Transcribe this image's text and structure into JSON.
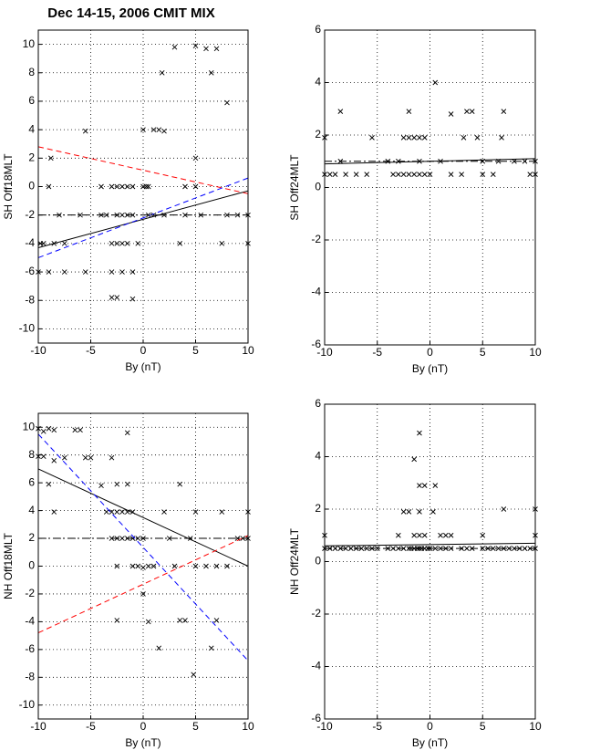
{
  "chart_data": [
    {
      "type": "scatter",
      "title": "Dec 14-15, 2006 CMIT MIX",
      "xlabel": "By (nT)",
      "ylabel": "SH Off18MLT",
      "xlim": [
        -10,
        10
      ],
      "ylim": [
        -11,
        11
      ],
      "xticks": [
        -10,
        -5,
        0,
        5,
        10
      ],
      "yticks": [
        -10,
        -8,
        -6,
        -4,
        -2,
        0,
        2,
        4,
        6,
        8,
        10
      ],
      "grid": true,
      "series": [
        {
          "color": "#000000",
          "x": [
            -10,
            -9.8,
            -9.5,
            -9,
            -9,
            -8.8,
            -8.5,
            -7.5,
            -7.5,
            -5.5,
            -5.5,
            -3.5,
            -3,
            -3,
            -3,
            -2.5,
            -2.5,
            -2,
            -2,
            -1.5,
            -1.5,
            -1,
            -1,
            -1,
            0,
            0,
            0.5,
            0.5,
            1,
            1.5,
            1.8,
            2,
            1,
            2,
            3,
            3.5,
            4,
            5,
            5,
            5,
            6,
            6.5,
            7,
            7.5,
            8,
            9,
            10,
            10,
            -8,
            -6,
            -4,
            -2.5,
            -2,
            -1,
            -4,
            -3,
            -2.5,
            -1.5,
            0.3,
            -0.5,
            -2,
            4,
            5.5,
            8
          ],
          "values": [
            -6,
            -4,
            -4,
            -6,
            0,
            2,
            -4,
            -4,
            -6,
            3.9,
            -6,
            -2,
            -4,
            -6,
            -7.8,
            -7.8,
            -4,
            -6,
            0,
            -2,
            -4,
            -6,
            -7.9,
            0,
            0,
            4,
            -2,
            0,
            4,
            4,
            8,
            3.9,
            -2,
            -2,
            9.8,
            -4,
            -2,
            9.9,
            2,
            0,
            9.7,
            8,
            9.7,
            -4,
            5.9,
            -2,
            -2,
            -4,
            -2,
            -2,
            -2,
            -2,
            -2,
            -2,
            0,
            0,
            0,
            0,
            0,
            -4,
            -4,
            0,
            -2,
            -2
          ]
        }
      ],
      "lines": [
        {
          "color": "#000000",
          "dash": "solid",
          "x": [
            -10,
            10
          ],
          "values": [
            -4.3,
            -0.3
          ]
        },
        {
          "color": "#ff0000",
          "dash": "dashed",
          "x": [
            -10,
            10
          ],
          "values": [
            2.8,
            -0.5
          ]
        },
        {
          "color": "#0000ff",
          "dash": "dashed",
          "x": [
            -10,
            10
          ],
          "values": [
            -5,
            0.6
          ]
        },
        {
          "color": "#000000",
          "dash": "dashdot",
          "x": [
            -10,
            10
          ],
          "values": [
            -2,
            -2
          ]
        }
      ]
    },
    {
      "type": "scatter",
      "xlabel": "By (nT)",
      "ylabel": "SH Off24MLT",
      "xlim": [
        -10,
        10
      ],
      "ylim": [
        -6,
        6
      ],
      "xticks": [
        -10,
        -5,
        0,
        5,
        10
      ],
      "yticks": [
        -6,
        -4,
        -2,
        0,
        2,
        4,
        6
      ],
      "grid": true,
      "series": [
        {
          "color": "#000000",
          "x": [
            -10,
            -10,
            -9.5,
            -9,
            -8.5,
            -8.5,
            -8,
            -7,
            -6,
            -5.5,
            -4,
            -3.5,
            -3,
            -2.5,
            -2,
            -1.5,
            -1,
            -0.5,
            0,
            -2,
            -2.5,
            -2,
            -1.5,
            -1,
            -0.5,
            0.5,
            -3,
            -1,
            1,
            2,
            2,
            3,
            3.2,
            3.5,
            4,
            4.5,
            5,
            5,
            6,
            6.5,
            7,
            6.8,
            8,
            9,
            10,
            9.5,
            10
          ],
          "values": [
            1.9,
            0.5,
            0.5,
            0.5,
            2.9,
            1,
            0.5,
            0.5,
            0.5,
            1.9,
            1,
            0.5,
            0.5,
            0.5,
            0.5,
            0.5,
            0.5,
            0.5,
            0.5,
            2.9,
            1.9,
            1.9,
            1.9,
            1.9,
            1.9,
            4,
            1,
            1,
            1,
            2.8,
            0.5,
            0.5,
            1.9,
            2.9,
            2.9,
            1.9,
            0.5,
            1,
            0.5,
            1,
            2.9,
            1.9,
            1,
            1,
            0.5,
            0.5,
            1
          ]
        }
      ],
      "lines": [
        {
          "color": "#000000",
          "dash": "solid",
          "x": [
            -10,
            10
          ],
          "values": [
            0.9,
            1.1
          ]
        },
        {
          "color": "#000000",
          "dash": "dashdot",
          "x": [
            -10,
            10
          ],
          "values": [
            1,
            1
          ]
        }
      ]
    },
    {
      "type": "scatter",
      "xlabel": "By (nT)",
      "ylabel": "NH Off18MLT",
      "xlim": [
        -10,
        10
      ],
      "ylim": [
        -11,
        11
      ],
      "xticks": [
        -10,
        -5,
        0,
        5,
        10
      ],
      "yticks": [
        -10,
        -8,
        -6,
        -4,
        -2,
        0,
        2,
        4,
        6,
        8,
        10
      ],
      "grid": true,
      "series": [
        {
          "color": "#000000",
          "x": [
            -10,
            -9.5,
            -9,
            -8.5,
            -10,
            -9.5,
            -9,
            -8.5,
            -8.5,
            -7.5,
            -6.5,
            -6,
            -5.5,
            -5,
            -4,
            -3.5,
            -3,
            -2.5,
            -2,
            -1.5,
            -1,
            -3,
            -3,
            -2.5,
            -2,
            -1.5,
            -1,
            -0.5,
            -2.5,
            -1.5,
            -1.5,
            -2.5,
            -2.5,
            -0.5,
            0,
            0.5,
            1,
            0,
            0.5,
            1.5,
            2,
            2.5,
            3,
            3.5,
            3.5,
            4,
            4.5,
            4.8,
            5,
            5,
            6,
            6.5,
            7,
            7,
            7.5,
            8,
            9,
            10,
            10,
            9.5,
            -1,
            0
          ],
          "values": [
            9.9,
            9.7,
            9.9,
            9.8,
            7.9,
            7.9,
            5.9,
            3.9,
            7.6,
            7.8,
            9.8,
            9.8,
            7.8,
            7.8,
            5.8,
            3.9,
            3.9,
            3.9,
            3.9,
            3.9,
            3.9,
            7.8,
            2,
            2,
            2,
            2,
            2,
            2,
            5.9,
            5.9,
            9.6,
            -3.9,
            0,
            0,
            -0.1,
            0,
            0,
            -2,
            -4,
            -5.9,
            3.9,
            2,
            0,
            -3.9,
            5.9,
            -3.9,
            2,
            -7.8,
            0,
            3.9,
            0,
            -5.9,
            -3.9,
            0,
            3.9,
            0,
            2,
            3.9,
            2,
            2,
            0,
            2
          ]
        }
      ],
      "lines": [
        {
          "color": "#000000",
          "dash": "solid",
          "x": [
            -10,
            10
          ],
          "values": [
            7,
            0
          ]
        },
        {
          "color": "#0000ff",
          "dash": "dashed",
          "x": [
            -10,
            10
          ],
          "values": [
            9.5,
            -6.8
          ]
        },
        {
          "color": "#ff0000",
          "dash": "dashed",
          "x": [
            -10,
            10
          ],
          "values": [
            -4.8,
            2.2
          ]
        },
        {
          "color": "#000000",
          "dash": "dashdot",
          "x": [
            -10,
            10
          ],
          "values": [
            2,
            2
          ]
        }
      ]
    },
    {
      "type": "scatter",
      "xlabel": "By (nT)",
      "ylabel": "NH Off24MLT",
      "xlim": [
        -10,
        10
      ],
      "ylim": [
        -6,
        6
      ],
      "xticks": [
        -10,
        -5,
        0,
        5,
        10
      ],
      "yticks": [
        -6,
        -4,
        -2,
        0,
        2,
        4,
        6
      ],
      "grid": true,
      "series": [
        {
          "color": "#000000",
          "x": [
            -10,
            -3,
            -2.5,
            -2,
            -1.5,
            -1,
            -1,
            -0.5,
            0.5,
            0.3,
            -1,
            -1.5,
            -1,
            -0.5,
            1,
            1.5,
            2,
            5,
            7,
            10,
            10,
            -10,
            -9.5,
            -9,
            -8.5,
            -8,
            -7.5,
            -7,
            -6.5,
            -6,
            -5.5,
            -5,
            -4,
            -3.5,
            -3,
            -2.5,
            -2,
            -1.8,
            -1.5,
            -1.2,
            -1,
            -0.8,
            -0.5,
            -0.2,
            0,
            0.5,
            1,
            1.5,
            2,
            3,
            3.5,
            4,
            5,
            5.5,
            6,
            6.5,
            7,
            7.5,
            8,
            8.5,
            9,
            9.5,
            10
          ],
          "values": [
            1,
            1,
            1.9,
            1.9,
            3.9,
            4.9,
            2.9,
            2.9,
            2.9,
            1.9,
            1.9,
            1,
            1,
            1,
            1,
            1,
            1,
            1,
            2,
            2,
            1,
            0.5,
            0.5,
            0.5,
            0.5,
            0.5,
            0.5,
            0.5,
            0.5,
            0.5,
            0.5,
            0.5,
            0.5,
            0.5,
            0.5,
            0.5,
            0.5,
            0.5,
            0.5,
            0.5,
            0.5,
            0.5,
            0.5,
            0.5,
            0.5,
            0.5,
            0.5,
            0.5,
            0.5,
            0.5,
            0.5,
            0.5,
            0.5,
            0.5,
            0.5,
            0.5,
            0.5,
            0.5,
            0.5,
            0.5,
            0.5,
            0.5,
            0.5
          ]
        }
      ],
      "lines": [
        {
          "color": "#000000",
          "dash": "solid",
          "x": [
            -10,
            10
          ],
          "values": [
            0.6,
            0.7
          ]
        },
        {
          "color": "#000000",
          "dash": "dashdot",
          "x": [
            -10,
            10
          ],
          "values": [
            0.5,
            0.5
          ]
        }
      ]
    }
  ]
}
